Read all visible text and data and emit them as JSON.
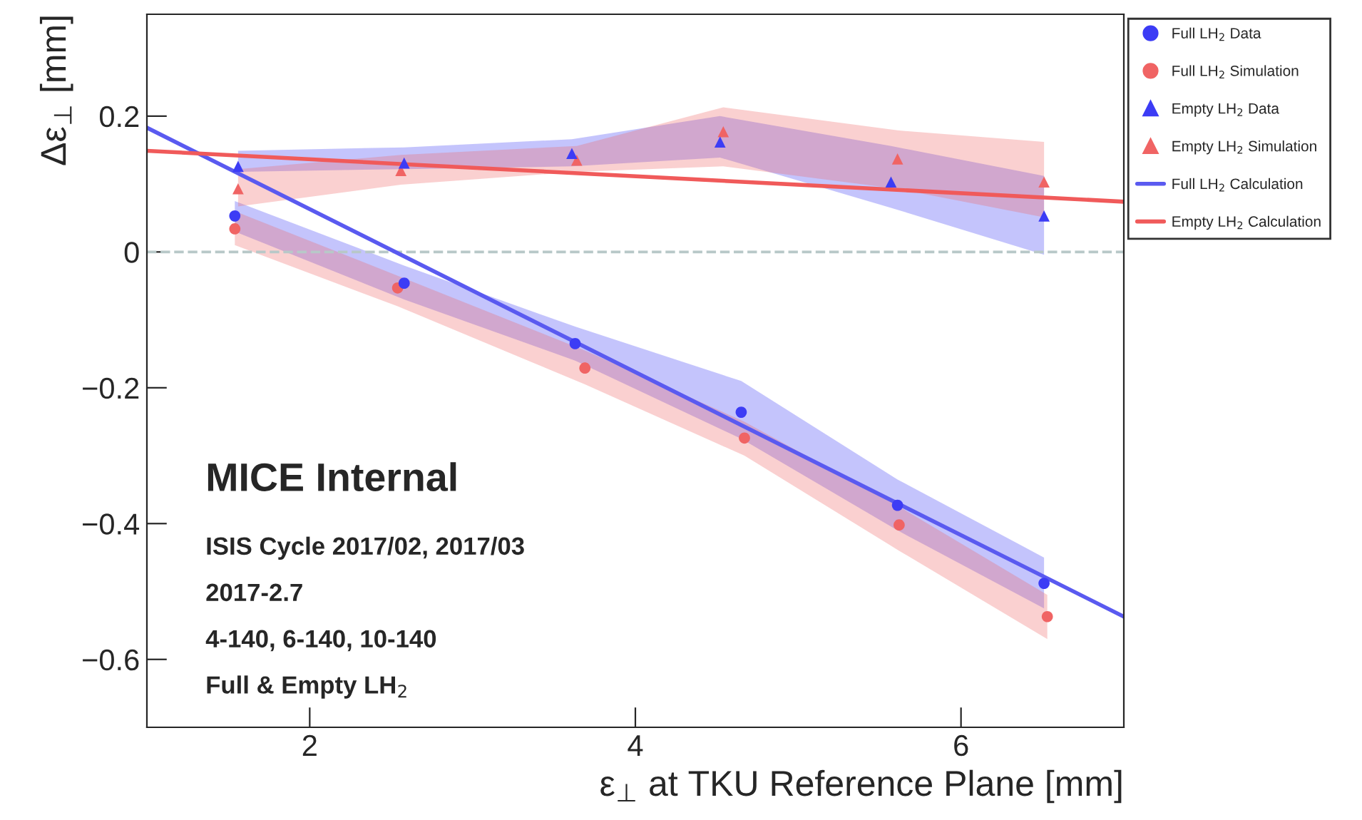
{
  "chart_data": {
    "type": "scatter",
    "xlabel": "ε$_{⊥}$ at TKU Reference Plane [mm]",
    "ylabel": "Δε$_{⊥}$ [mm]",
    "xlim": [
      1,
      7
    ],
    "xticks": [
      2,
      4,
      6
    ],
    "ylim": [
      -0.7,
      0.35
    ],
    "yticks": [
      {
        "value": -0.6,
        "label": "−0.6"
      },
      {
        "value": -0.4,
        "label": "−0.4"
      },
      {
        "value": -0.2,
        "label": "−0.2"
      },
      0,
      0.2
    ],
    "grid": false,
    "legend": "top right",
    "ref_lines": [
      {
        "axis": "y",
        "value": 0,
        "color": "#b8c8c8",
        "line_style": "dashed"
      }
    ],
    "annotations": [
      "MICE Internal",
      "ISIS Cycle 2017/02, 2017/03",
      "2017-2.7",
      "4-140, 6-140, 10-140",
      "Full & Empty LH$_{2}$"
    ],
    "series": [
      {
        "name": "Full LH$_{2}$ Data",
        "marker": "circle",
        "color": "#3c3cf5",
        "x": [
          1.54,
          2.58,
          3.63,
          4.65,
          5.61,
          6.51
        ],
        "values": [
          0.053,
          -0.046,
          -0.135,
          -0.236,
          -0.373,
          -0.488
        ],
        "upper": [
          0.075,
          -0.02,
          -0.11,
          -0.19,
          -0.335,
          -0.45
        ],
        "lower": [
          0.03,
          -0.07,
          -0.16,
          -0.275,
          -0.41,
          -0.525
        ]
      },
      {
        "name": "Full LH$_{2}$ Simulation",
        "marker": "circle",
        "color": "#f06464",
        "x": [
          1.54,
          2.54,
          3.69,
          4.67,
          5.62,
          6.53
        ],
        "values": [
          0.034,
          -0.053,
          -0.171,
          -0.274,
          -0.402,
          -0.537
        ],
        "upper": [
          0.06,
          -0.035,
          -0.145,
          -0.25,
          -0.375,
          -0.505
        ],
        "lower": [
          0.01,
          -0.08,
          -0.195,
          -0.3,
          -0.44,
          -0.57
        ]
      },
      {
        "name": "Empty LH$_{2}$ Data",
        "marker": "triangle",
        "color": "#3c3cf5",
        "x": [
          1.56,
          2.58,
          3.61,
          4.52,
          5.57,
          6.51
        ],
        "values": [
          0.126,
          0.131,
          0.145,
          0.162,
          0.103,
          0.053
        ],
        "upper": [
          0.149,
          0.154,
          0.166,
          0.2,
          0.156,
          0.112
        ],
        "lower": [
          0.118,
          0.122,
          0.126,
          0.139,
          0.065,
          -0.004
        ]
      },
      {
        "name": "Empty LH$_{2}$ Simulation",
        "marker": "triangle",
        "color": "#f06464",
        "x": [
          1.56,
          2.56,
          3.64,
          4.54,
          5.61,
          6.51
        ],
        "values": [
          0.093,
          0.12,
          0.135,
          0.177,
          0.137,
          0.103
        ],
        "upper": [
          0.122,
          0.143,
          0.156,
          0.213,
          0.179,
          0.162
        ],
        "lower": [
          0.067,
          0.099,
          0.118,
          0.126,
          0.093,
          0.051
        ]
      },
      {
        "name": "Full LH$_{2}$ Calculation",
        "type": "line",
        "color": "#5a5af0",
        "x": [
          1,
          7
        ],
        "values": [
          0.183,
          -0.537
        ]
      },
      {
        "name": "Empty LH$_{2}$ Calculation",
        "type": "line",
        "color": "#f05a5a",
        "x": [
          1,
          7
        ],
        "values": [
          0.149,
          0.074
        ]
      }
    ]
  }
}
